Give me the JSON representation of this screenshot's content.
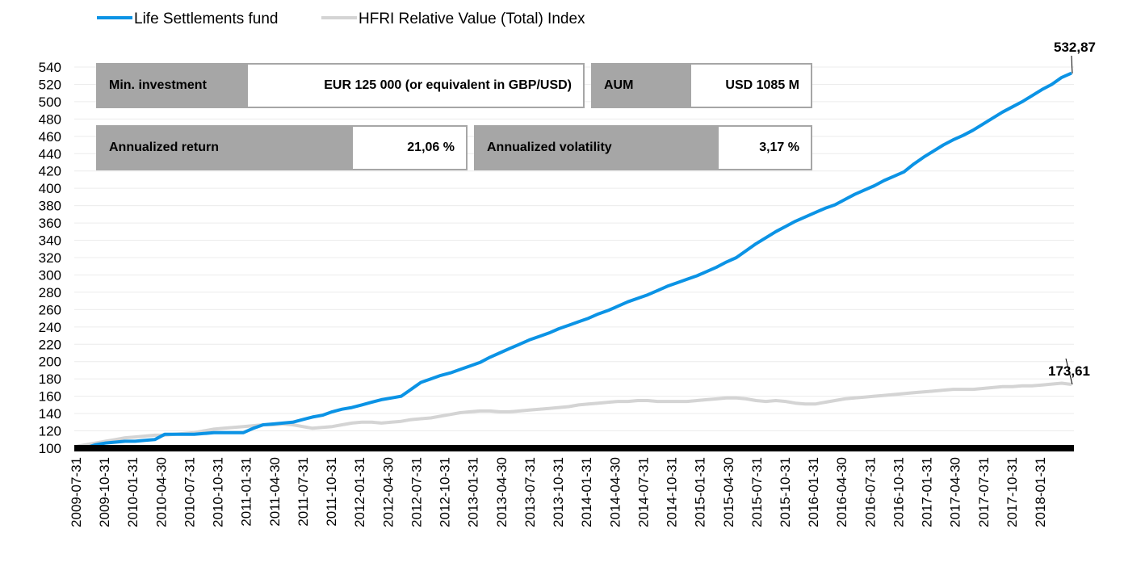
{
  "info_boxes": {
    "min_investment": {
      "label": "Min. investment",
      "value": "EUR 125 000 (or equivalent in GBP/USD)"
    },
    "aum": {
      "label": "AUM",
      "value": "USD 1085 M"
    },
    "annualized_return": {
      "label": "Annualized return",
      "value": "21,06 %"
    },
    "annualized_volatility": {
      "label": "Annualized volatility",
      "value": "3,17 %"
    }
  },
  "end_labels": {
    "fund": "532,87",
    "index": "173,61"
  },
  "chart_data": {
    "type": "line",
    "title": "",
    "xlabel": "",
    "ylabel": "",
    "ylim": [
      100,
      540
    ],
    "yticks": [
      100,
      120,
      140,
      160,
      180,
      200,
      220,
      240,
      260,
      280,
      300,
      320,
      340,
      360,
      380,
      400,
      420,
      440,
      460,
      480,
      500,
      520,
      540
    ],
    "xticks": [
      "2009-07-31",
      "2009-10-31",
      "2010-01-31",
      "2010-04-30",
      "2010-07-31",
      "2010-10-31",
      "2011-01-31",
      "2011-04-30",
      "2011-07-31",
      "2011-10-31",
      "2012-01-31",
      "2012-04-30",
      "2012-07-31",
      "2012-10-31",
      "2013-01-31",
      "2013-04-30",
      "2013-07-31",
      "2013-10-31",
      "2014-01-31",
      "2014-04-30",
      "2014-07-31",
      "2014-10-31",
      "2015-01-31",
      "2015-04-30",
      "2015-07-31",
      "2015-10-31",
      "2016-01-31",
      "2016-04-30",
      "2016-07-31",
      "2016-10-31",
      "2017-01-31",
      "2017-04-30",
      "2017-07-31",
      "2017-10-31",
      "2018-01-31"
    ],
    "grid": true,
    "legend_position": "top-left",
    "colors": {
      "fund": "#0b93e5",
      "index": "#d4d4d4"
    },
    "series": [
      {
        "name": "Life Settlements fund",
        "values": [
          100,
          100.5,
          104,
          106,
          107,
          108,
          108,
          109,
          110,
          116,
          116,
          116,
          116,
          117,
          118,
          118,
          118,
          118,
          123,
          127,
          128,
          129,
          130,
          133,
          136,
          138,
          142,
          145,
          147,
          150,
          153,
          156,
          158,
          160,
          168,
          176,
          180,
          184,
          187,
          191,
          195,
          199,
          205,
          210,
          215,
          220,
          225,
          229,
          233,
          238,
          242,
          246,
          250,
          255,
          259,
          264,
          269,
          273,
          277,
          282,
          287,
          291,
          295,
          299,
          304,
          309,
          315,
          320,
          328,
          336,
          343,
          350,
          356,
          362,
          367,
          372,
          377,
          381,
          387,
          393,
          398,
          403,
          409,
          414,
          419,
          428,
          436,
          443,
          450,
          456,
          461,
          467,
          474,
          481,
          488,
          494,
          500,
          507,
          514,
          520,
          528,
          532.87
        ]
      },
      {
        "name": "HFRI Relative Value (Total) Index",
        "values": [
          102,
          104,
          106,
          108,
          110,
          112,
          113,
          114,
          115,
          115,
          116,
          117,
          118,
          120,
          122,
          123,
          124,
          125,
          126,
          127,
          127,
          128,
          127,
          125,
          123,
          124,
          125,
          127,
          129,
          130,
          130,
          129,
          130,
          131,
          133,
          134,
          135,
          137,
          139,
          141,
          142,
          143,
          143,
          142,
          142,
          143,
          144,
          145,
          146,
          147,
          148,
          150,
          151,
          152,
          153,
          154,
          154,
          155,
          155,
          154,
          154,
          154,
          154,
          155,
          156,
          157,
          158,
          158,
          157,
          155,
          154,
          155,
          154,
          152,
          151,
          151,
          153,
          155,
          157,
          158,
          159,
          160,
          161,
          162,
          163,
          164,
          165,
          166,
          167,
          168,
          168,
          168,
          169,
          170,
          171,
          171,
          172,
          172,
          173,
          174,
          175,
          173.61
        ]
      }
    ]
  }
}
